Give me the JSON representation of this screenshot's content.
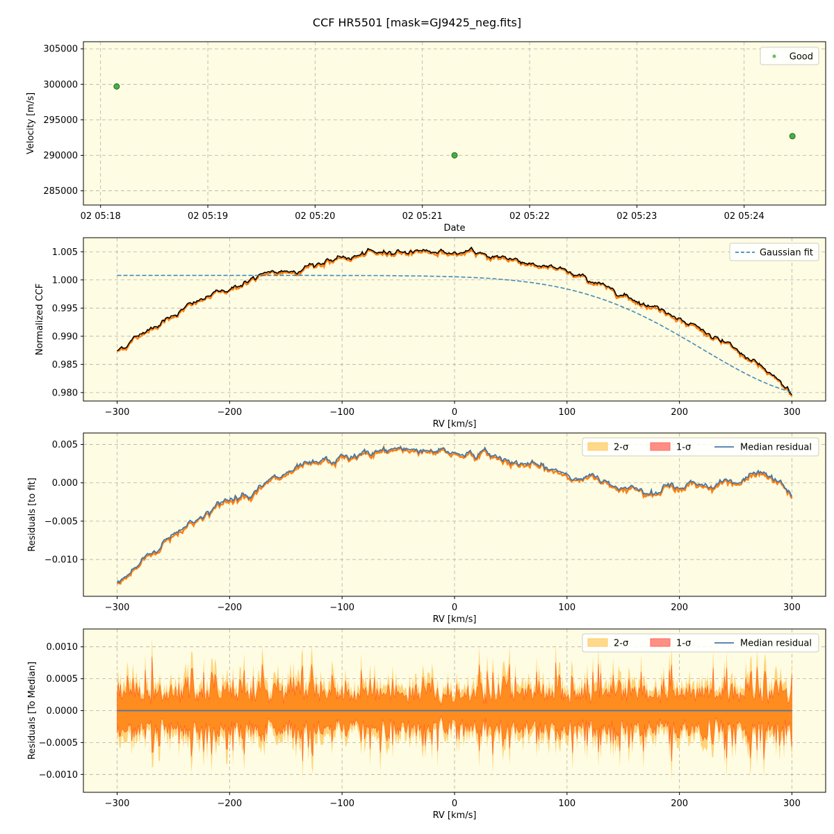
{
  "figure": {
    "title": "CCF HR5501 [mask=GJ9425_neg.fits]",
    "colors": {
      "plot_bg": "#fefce2",
      "good_point": "#2ca02c",
      "ccf_line": "#000000",
      "ccf_band": "#ff7f0e",
      "gaussian_fit": "#1f77b4",
      "two_sigma": "#ffcc66",
      "one_sigma": "#ff6a5c",
      "median_residual": "#4477aa"
    }
  },
  "chart_data": [
    {
      "type": "scatter",
      "xlabel": "Date",
      "ylabel": "Velocity [m/s]",
      "x_ticks": [
        {
          "value": 0,
          "label": "02 05:18"
        },
        {
          "value": 1,
          "label": "02 05:19"
        },
        {
          "value": 2,
          "label": "02 05:20"
        },
        {
          "value": 3,
          "label": "02 05:21"
        },
        {
          "value": 4,
          "label": "02 05:22"
        },
        {
          "value": 5,
          "label": "02 05:23"
        },
        {
          "value": 6,
          "label": "02 05:24"
        }
      ],
      "xlim_minutes_after_0518": [
        -0.16,
        6.76
      ],
      "ylim": [
        283000,
        306000
      ],
      "y_ticks": [
        285000,
        290000,
        295000,
        300000,
        305000
      ],
      "series": [
        {
          "name": "Good",
          "x_minutes_after_0518": [
            0.15,
            3.3,
            6.45
          ],
          "y": [
            299700,
            290000,
            292700
          ]
        }
      ],
      "grid": true,
      "legend": "upper right"
    },
    {
      "type": "line",
      "xlabel": "RV [km/s]",
      "ylabel": "Normalized CCF",
      "xlim": [
        -330,
        330
      ],
      "ylim": [
        0.9785,
        1.0075
      ],
      "x_ticks": [
        -300,
        -200,
        -100,
        0,
        100,
        200,
        300
      ],
      "y_ticks": [
        0.98,
        0.985,
        0.99,
        0.995,
        1.0,
        1.005
      ],
      "series": [
        {
          "name": "CCF",
          "x": [
            -300,
            -275,
            -250,
            -225,
            -200,
            -175,
            -150,
            -125,
            -100,
            -75,
            -50,
            -25,
            0,
            25,
            50,
            75,
            100,
            125,
            150,
            175,
            200,
            225,
            250,
            275,
            300
          ],
          "y": [
            0.9875,
            0.991,
            0.994,
            0.9965,
            0.9985,
            1.0005,
            1.0015,
            1.0028,
            1.0038,
            1.0046,
            1.0052,
            1.0053,
            1.0048,
            1.0046,
            1.0038,
            1.0028,
            1.0014,
            0.9997,
            0.9976,
            0.9955,
            0.9935,
            0.9905,
            0.9875,
            0.984,
            0.98
          ]
        },
        {
          "name": "Gaussian fit",
          "style": "dashed"
        }
      ],
      "gaussian_fit": {
        "baseline": 1.0008,
        "amplitude": -0.0215,
        "center": 330,
        "sigma": 110
      },
      "grid": true,
      "legend": "upper right"
    },
    {
      "type": "line",
      "xlabel": "RV [km/s]",
      "ylabel": "Residuals [to fit]",
      "xlim": [
        -330,
        330
      ],
      "ylim": [
        -0.0148,
        0.0065
      ],
      "x_ticks": [
        -300,
        -200,
        -100,
        0,
        100,
        200,
        300
      ],
      "y_ticks": [
        -0.01,
        -0.005,
        0.0,
        0.005
      ],
      "y_tick_labels": [
        "−0.010",
        "−0.005",
        "0.000",
        "0.005"
      ],
      "series": [
        {
          "name": "2-σ",
          "kind": "band"
        },
        {
          "name": "1-σ",
          "kind": "band"
        },
        {
          "name": "Median residual",
          "x": [
            -300,
            -275,
            -250,
            -225,
            -200,
            -175,
            -150,
            -125,
            -100,
            -75,
            -50,
            -25,
            0,
            25,
            50,
            75,
            100,
            125,
            150,
            175,
            200,
            225,
            250,
            275,
            300
          ],
          "y": [
            -0.0133,
            -0.0098,
            -0.0066,
            -0.0042,
            -0.0022,
            -0.0006,
            0.001,
            0.0022,
            0.0031,
            0.0038,
            0.0044,
            0.0045,
            0.004,
            0.0038,
            0.003,
            0.002,
            0.0011,
            0.0004,
            -0.0002,
            -0.0006,
            -0.0005,
            -0.0001,
            0.0004,
            0.001,
            -0.0012
          ]
        }
      ],
      "grid": true,
      "legend": "upper right"
    },
    {
      "type": "line",
      "xlabel": "RV [km/s]",
      "ylabel": "Residuals [To Median]",
      "xlim": [
        -330,
        330
      ],
      "ylim": [
        -0.00128,
        0.00128
      ],
      "x_ticks": [
        -300,
        -200,
        -100,
        0,
        100,
        200,
        300
      ],
      "y_ticks": [
        -0.001,
        -0.0005,
        0.0,
        0.0005,
        0.001
      ],
      "y_tick_labels": [
        "−0.0010",
        "−0.0005",
        "0.0000",
        "0.0005",
        "0.0010"
      ],
      "series": [
        {
          "name": "2-σ",
          "kind": "band",
          "typical_amplitude": 0.0004,
          "max_amplitude": 0.0012
        },
        {
          "name": "1-σ",
          "kind": "band",
          "typical_amplitude": 0.0002,
          "max_amplitude": 0.0009
        },
        {
          "name": "Median residual",
          "value": 0.0
        }
      ],
      "grid": true,
      "legend": "upper right"
    }
  ],
  "x_tick_text": {
    "rv": [
      "−300",
      "−200",
      "−100",
      "0",
      "100",
      "200",
      "300"
    ]
  },
  "y_tick_text": {
    "p1": [
      "285000",
      "290000",
      "295000",
      "300000",
      "305000"
    ],
    "p2": [
      "0.980",
      "0.985",
      "0.990",
      "0.995",
      "1.000",
      "1.005"
    ]
  }
}
